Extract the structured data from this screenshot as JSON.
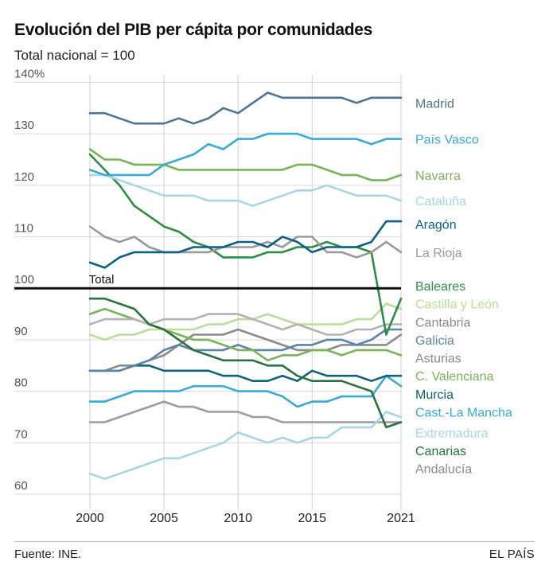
{
  "header": {
    "title": "Evolución del PIB per cápita por comunidades",
    "subtitle": "Total nacional = 100"
  },
  "footer": {
    "source": "Fuente: INE.",
    "brand": "EL PAÍS"
  },
  "chart_data": {
    "type": "line",
    "title": "Evolución del PIB per cápita por comunidades",
    "subtitle": "Total nacional = 100",
    "xlabel": "",
    "ylabel": "",
    "x": [
      2000,
      2001,
      2002,
      2003,
      2004,
      2005,
      2006,
      2007,
      2008,
      2009,
      2010,
      2011,
      2012,
      2013,
      2014,
      2015,
      2016,
      2017,
      2018,
      2019,
      2020,
      2021
    ],
    "xticks": [
      "2000",
      "2005",
      "2010",
      "2015",
      "2021"
    ],
    "xtick_values": [
      2000,
      2005,
      2010,
      2015,
      2021
    ],
    "ylim": [
      58,
      143
    ],
    "yticks": [
      60,
      70,
      80,
      90,
      100,
      110,
      120,
      130,
      140
    ],
    "ytick_labels": [
      "60",
      "70",
      "80",
      "90",
      "100",
      "110",
      "120",
      "130",
      "140%"
    ],
    "grid": true,
    "reference_line": 100,
    "series": [
      {
        "name": "Andalucía",
        "color": "#9c9c9c",
        "values": [
          74,
          74,
          75,
          76,
          77,
          78,
          77,
          77,
          76,
          76,
          76,
          75,
          75,
          74,
          74,
          74,
          74,
          74,
          74,
          74,
          74,
          74
        ]
      },
      {
        "name": "Extremadura",
        "color": "#a8d4e6",
        "values": [
          64,
          63,
          64,
          65,
          66,
          67,
          67,
          68,
          69,
          70,
          72,
          71,
          70,
          71,
          70,
          71,
          71,
          73,
          73,
          73,
          76,
          75
        ]
      },
      {
        "name": "Castilla-La Mancha",
        "color": "#3aaad3",
        "values": [
          78,
          78,
          79,
          80,
          80,
          80,
          80,
          81,
          81,
          81,
          80,
          80,
          80,
          79,
          77,
          78,
          78,
          79,
          79,
          79,
          83,
          81
        ]
      },
      {
        "name": "Asturias",
        "color": "#8a8a8a",
        "values": [
          84,
          84,
          85,
          85,
          86,
          87,
          89,
          91,
          91,
          91,
          92,
          91,
          90,
          89,
          88,
          88,
          88,
          89,
          89,
          89,
          89,
          91
        ]
      },
      {
        "name": "Murcia",
        "color": "#0f5f7d",
        "values": [
          84,
          84,
          84,
          85,
          85,
          84,
          84,
          84,
          84,
          83,
          83,
          82,
          82,
          83,
          82,
          84,
          83,
          83,
          83,
          82,
          83,
          83
        ]
      },
      {
        "name": "Galicia",
        "color": "#5c84a8",
        "values": [
          84,
          84,
          84,
          85,
          86,
          88,
          89,
          88,
          88,
          88,
          89,
          88,
          88,
          88,
          89,
          89,
          90,
          90,
          89,
          90,
          92,
          92
        ]
      },
      {
        "name": "C. Valenciana",
        "color": "#7ab25b",
        "values": [
          95,
          96,
          95,
          94,
          93,
          92,
          91,
          90,
          90,
          89,
          88,
          88,
          86,
          87,
          87,
          88,
          88,
          87,
          88,
          88,
          88,
          87
        ]
      },
      {
        "name": "Castilla y León",
        "color": "#bcdc99",
        "values": [
          91,
          90,
          91,
          91,
          92,
          92,
          92,
          92,
          93,
          93,
          94,
          94,
          95,
          94,
          93,
          93,
          93,
          93,
          94,
          94,
          97,
          96
        ]
      },
      {
        "name": "Cantabria",
        "color": "#b3b3b3",
        "values": [
          93,
          94,
          94,
          94,
          93,
          94,
          94,
          94,
          95,
          95,
          95,
          94,
          93,
          92,
          93,
          92,
          91,
          91,
          92,
          92,
          93,
          93
        ]
      },
      {
        "name": "Canarias",
        "color": "#2a7040",
        "values": [
          98,
          98,
          97,
          96,
          93,
          92,
          90,
          88,
          87,
          86,
          86,
          86,
          85,
          85,
          83,
          82,
          82,
          82,
          81,
          80,
          73,
          74
        ]
      },
      {
        "name": "Baleares",
        "color": "#2f8c44",
        "values": [
          126,
          123,
          120,
          116,
          114,
          112,
          111,
          109,
          108,
          106,
          106,
          106,
          107,
          107,
          108,
          108,
          109,
          108,
          108,
          107,
          91,
          98
        ]
      },
      {
        "name": "La Rioja",
        "color": "#9a9a9a",
        "values": [
          112,
          110,
          109,
          110,
          108,
          107,
          107,
          107,
          107,
          108,
          108,
          108,
          109,
          108,
          110,
          110,
          107,
          107,
          106,
          107,
          109,
          107
        ]
      },
      {
        "name": "Aragón",
        "color": "#0d5f86",
        "values": [
          105,
          104,
          106,
          107,
          107,
          107,
          107,
          108,
          108,
          108,
          109,
          109,
          108,
          110,
          109,
          107,
          108,
          108,
          108,
          109,
          113,
          113
        ]
      },
      {
        "name": "Cataluña",
        "color": "#a8d4e6",
        "values": [
          122,
          122,
          121,
          120,
          119,
          118,
          118,
          118,
          117,
          117,
          117,
          116,
          117,
          118,
          119,
          119,
          120,
          119,
          118,
          118,
          118,
          117
        ]
      },
      {
        "name": "Navarra",
        "color": "#7ab25b",
        "values": [
          127,
          125,
          125,
          124,
          124,
          124,
          123,
          123,
          123,
          123,
          123,
          123,
          123,
          123,
          124,
          124,
          123,
          122,
          122,
          121,
          121,
          122
        ]
      },
      {
        "name": "País Vasco",
        "color": "#3aaad3",
        "values": [
          123,
          122,
          122,
          122,
          122,
          124,
          125,
          126,
          128,
          127,
          129,
          129,
          130,
          130,
          130,
          129,
          129,
          129,
          129,
          128,
          129,
          129
        ]
      },
      {
        "name": "Madrid",
        "color": "#4f7392",
        "values": [
          134,
          134,
          133,
          132,
          132,
          132,
          133,
          132,
          133,
          135,
          134,
          136,
          138,
          137,
          137,
          137,
          137,
          137,
          136,
          137,
          137,
          137
        ]
      }
    ],
    "labels": [
      {
        "name": "Madrid",
        "color": "#4f7392",
        "value": 136
      },
      {
        "name": "País Vasco",
        "color": "#3aaad3",
        "value": 129
      },
      {
        "name": "Navarra",
        "color": "#7ab25b",
        "value": 122
      },
      {
        "name": "Cataluña",
        "color": "#a8d4e6",
        "value": 117
      },
      {
        "name": "Aragón",
        "color": "#0d5f86",
        "value": 112.5
      },
      {
        "name": "La Rioja",
        "color": "#9a9a9a",
        "value": 107
      },
      {
        "name": "Baleares",
        "color": "#2f8c44",
        "value": 100.5
      },
      {
        "name": "Castilla y León",
        "color": "#bcdc99",
        "value": 97
      },
      {
        "name": "Cantabria",
        "color": "#8a8a8a",
        "value": 93.5
      },
      {
        "name": "Galicia",
        "color": "#5c84a8",
        "value": 90
      },
      {
        "name": "Asturias",
        "color": "#8a8a8a",
        "value": 86.5
      },
      {
        "name": "C. Valenciana",
        "color": "#7ab25b",
        "value": 83
      },
      {
        "name": "Murcia",
        "color": "#0f5f7d",
        "value": 79.5
      },
      {
        "name": "Cast.-La Mancha",
        "color": "#3aaad3",
        "value": 76
      },
      {
        "name": "Extremadura",
        "color": "#a8d4e6",
        "value": 72
      },
      {
        "name": "Canarias",
        "color": "#2a7040",
        "value": 68.5
      },
      {
        "name": "Andalucía",
        "color": "#8a8a8a",
        "value": 65
      }
    ],
    "annotations": [
      {
        "text": "Total",
        "x": 2001,
        "y": 100
      }
    ]
  }
}
